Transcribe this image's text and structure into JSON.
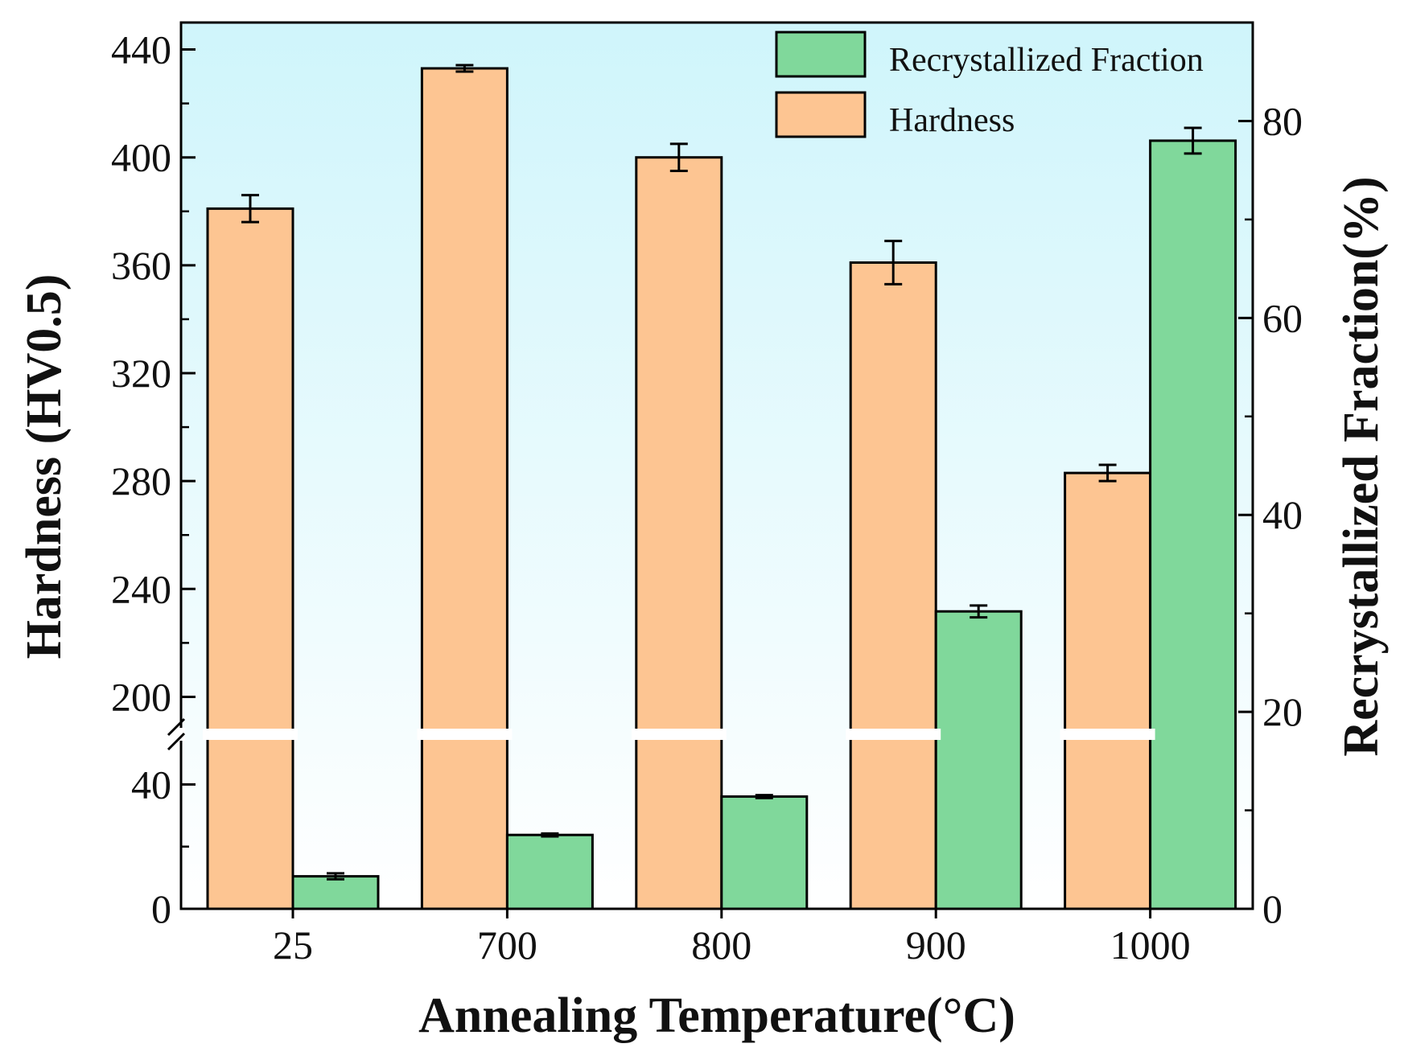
{
  "chart_data": {
    "type": "bar",
    "xlabel": "Annealing Temperature(°C)",
    "ylabel_left": "Hardness (HV0.5)",
    "ylabel_right": "Recrystallized Fraction(%)",
    "categories": [
      "25",
      "700",
      "800",
      "900",
      "1000"
    ],
    "left_axis": {
      "broken": true,
      "lower_range": [
        0,
        60
      ],
      "upper_range": [
        190,
        450
      ],
      "lower_ticks": [
        0,
        40
      ],
      "upper_ticks": [
        200,
        240,
        280,
        320,
        360,
        400,
        440
      ]
    },
    "right_axis": {
      "range": [
        0,
        90
      ],
      "ticks": [
        0,
        20,
        40,
        60,
        80
      ]
    },
    "series": [
      {
        "name": "Hardness",
        "axis": "left",
        "color": "#FDC592",
        "values": [
          381,
          433,
          400,
          361,
          283
        ],
        "errors": [
          5,
          1.2,
          5,
          8,
          3
        ]
      },
      {
        "name": "Recrystallized Fraction",
        "axis": "right",
        "color": "#80D89B",
        "values": [
          3.3,
          7.5,
          11.4,
          30.2,
          78
        ],
        "errors": [
          0.3,
          0.15,
          0.15,
          0.6,
          1.3
        ]
      }
    ],
    "legend": [
      "Recrystallized Fraction",
      "Hardness"
    ],
    "legend_position": "top-right",
    "background_gradient": [
      "#CFF5FB",
      "#FFFFFF"
    ],
    "grid": false
  }
}
